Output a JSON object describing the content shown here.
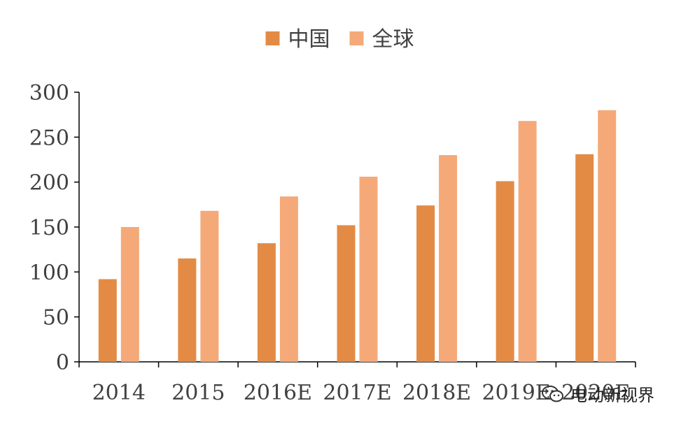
{
  "chart_data": {
    "type": "bar",
    "categories": [
      "2014",
      "2015",
      "2016E",
      "2017E",
      "2018E",
      "2019E",
      "2020E"
    ],
    "series": [
      {
        "name": "中国",
        "values": [
          92,
          115,
          132,
          152,
          174,
          201,
          231
        ],
        "color": "#E38B45"
      },
      {
        "name": "全球",
        "values": [
          150,
          168,
          184,
          206,
          230,
          268,
          280
        ],
        "color": "#F5A978"
      }
    ],
    "ylim": [
      0,
      300
    ],
    "yticks": [
      0,
      50,
      100,
      150,
      200,
      250,
      300
    ],
    "legend": "top-center",
    "grid": false
  },
  "watermark": {
    "text": "电动新视界",
    "icon": "wechat-icon"
  }
}
